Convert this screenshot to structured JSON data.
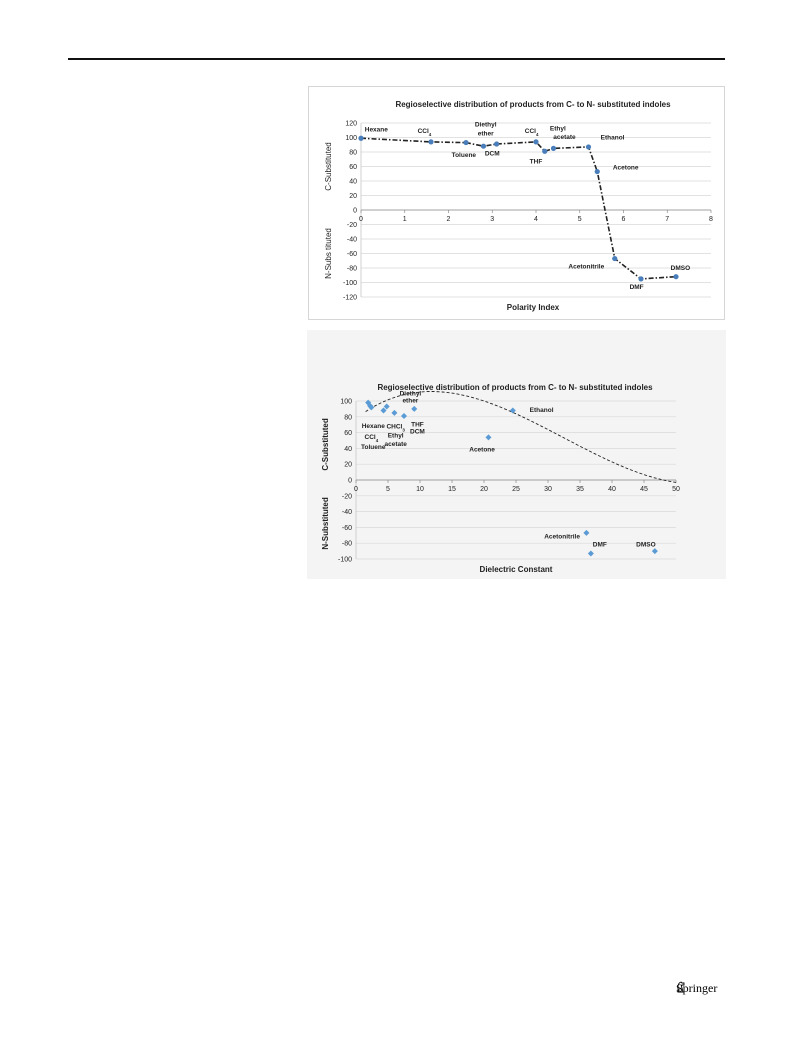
{
  "page": {
    "publisher": "Springer",
    "publisher_icon": "springer-horse-icon"
  },
  "chart_data": [
    {
      "type": "line",
      "title": "Regioselective distribution of products from C- to N-  substituted indoles",
      "xlabel": "Polarity Index",
      "ylabel_top": "C-Substituted",
      "ylabel_bottom": "N-Subs tituted",
      "xlim": [
        0,
        8
      ],
      "ylim": [
        -120,
        120
      ],
      "xticks": [
        0,
        1,
        2,
        3,
        4,
        5,
        6,
        7,
        8
      ],
      "yticks": [
        120,
        100,
        80,
        60,
        40,
        20,
        0,
        -20,
        -40,
        -60,
        -80,
        -100,
        -120
      ],
      "grid": "horizontal",
      "line_style": "dash-dot",
      "marker_color": "#4a7ebb",
      "points": [
        {
          "x": 0.0,
          "y": 99
        },
        {
          "x": 1.6,
          "y": 94
        },
        {
          "x": 2.4,
          "y": 93
        },
        {
          "x": 2.8,
          "y": 88
        },
        {
          "x": 3.1,
          "y": 91
        },
        {
          "x": 4.0,
          "y": 94
        },
        {
          "x": 4.2,
          "y": 81
        },
        {
          "x": 4.4,
          "y": 85
        },
        {
          "x": 5.2,
          "y": 87
        },
        {
          "x": 5.4,
          "y": 53
        },
        {
          "x": 5.8,
          "y": -67
        },
        {
          "x": 6.4,
          "y": -95
        },
        {
          "x": 7.2,
          "y": -92
        }
      ],
      "annotations": [
        {
          "text": "Hexane",
          "x": 0.35,
          "y": 108
        },
        {
          "text": "CCl",
          "sub": "4",
          "x": 1.45,
          "y": 106
        },
        {
          "text": "Diethyl",
          "x": 2.85,
          "y": 115
        },
        {
          "text": "ether",
          "x": 2.85,
          "y": 103
        },
        {
          "text": "Toluene",
          "x": 2.35,
          "y": 73
        },
        {
          "text": "DCM",
          "x": 3.0,
          "y": 75
        },
        {
          "text": "CCl",
          "sub": "4",
          "x": 3.9,
          "y": 106
        },
        {
          "text": "Ethyl",
          "x": 4.5,
          "y": 110
        },
        {
          "text": "acetate",
          "x": 4.65,
          "y": 98
        },
        {
          "text": "THF",
          "x": 4.0,
          "y": 64
        },
        {
          "text": "Ethanol",
          "x": 5.75,
          "y": 97
        },
        {
          "text": "Acetone",
          "x": 6.05,
          "y": 56
        },
        {
          "text": "Acetonitrile",
          "x": 5.15,
          "y": -81
        },
        {
          "text": "DMF",
          "x": 6.3,
          "y": -109
        },
        {
          "text": "DMSO",
          "x": 7.3,
          "y": -83
        }
      ]
    },
    {
      "type": "scatter",
      "title": "Regioselective distribution of products from C- to N-  substituted indoles",
      "xlabel": "Dielectric Constant",
      "ylabel_top": "C-Substituted",
      "ylabel_bottom": "N-Substituted",
      "xlim": [
        0,
        50
      ],
      "ylim": [
        -100,
        100
      ],
      "xticks": [
        0,
        5,
        10,
        15,
        20,
        25,
        30,
        35,
        40,
        45,
        50
      ],
      "yticks": [
        100,
        80,
        60,
        40,
        20,
        0,
        -20,
        -40,
        -60,
        -80,
        -100
      ],
      "grid": "horizontal",
      "trendline": "polynomial, dotted",
      "trend_coeffs": [
        78.0,
        6.23,
        -0.323,
        0.00332
      ],
      "marker": "diamond",
      "marker_color": "#5b9bd5",
      "points": [
        {
          "x": 1.9,
          "y": 98
        },
        {
          "x": 2.2,
          "y": 94
        },
        {
          "x": 2.4,
          "y": 92
        },
        {
          "x": 4.3,
          "y": 88
        },
        {
          "x": 4.8,
          "y": 93
        },
        {
          "x": 6.0,
          "y": 85
        },
        {
          "x": 7.5,
          "y": 81
        },
        {
          "x": 9.1,
          "y": 90
        },
        {
          "x": 20.7,
          "y": 54
        },
        {
          "x": 24.5,
          "y": 88
        },
        {
          "x": 36.0,
          "y": -67
        },
        {
          "x": 36.7,
          "y": -93
        },
        {
          "x": 46.7,
          "y": -90
        }
      ],
      "annotations": [
        {
          "text": "Diethyl",
          "x": 8.5,
          "y": 107
        },
        {
          "text": "ether",
          "x": 8.5,
          "y": 98
        },
        {
          "text": "Hexane",
          "x": 2.7,
          "y": 66
        },
        {
          "text": "CHCl",
          "sub": "3",
          "x": 6.2,
          "y": 65
        },
        {
          "text": "THF",
          "x": 9.6,
          "y": 68
        },
        {
          "text": "DCM",
          "x": 9.6,
          "y": 59
        },
        {
          "text": "CCl",
          "sub": "4",
          "x": 2.4,
          "y": 52
        },
        {
          "text": "Ethyl",
          "x": 6.2,
          "y": 54
        },
        {
          "text": "Toluene",
          "x": 2.7,
          "y": 39
        },
        {
          "text": "acetate",
          "x": 6.2,
          "y": 43
        },
        {
          "text": "Ethanol",
          "x": 29.0,
          "y": 86
        },
        {
          "text": "Acetone",
          "x": 19.7,
          "y": 36
        },
        {
          "text": "Acetonitrile",
          "x": 32.2,
          "y": -74
        },
        {
          "text": "DMF",
          "x": 38.1,
          "y": -84
        },
        {
          "text": "DMSO",
          "x": 45.3,
          "y": -84
        }
      ]
    }
  ]
}
